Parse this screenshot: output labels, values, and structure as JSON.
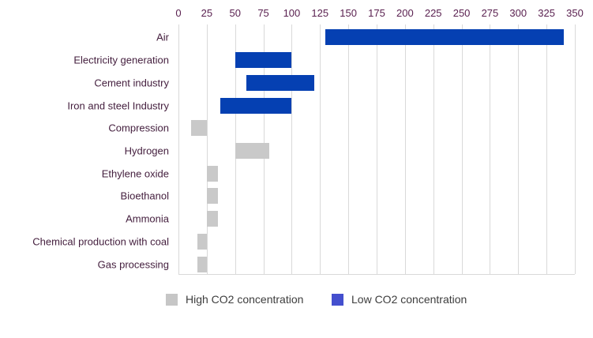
{
  "chart_data": {
    "type": "bar",
    "orientation": "horizontal",
    "title": "",
    "xlabel": "",
    "ylabel": "",
    "axis_position": "top",
    "xlim": [
      0,
      350
    ],
    "x_ticks": [
      0,
      25,
      50,
      75,
      100,
      125,
      150,
      175,
      200,
      225,
      250,
      275,
      300,
      325,
      350
    ],
    "grid": true,
    "value_unit": "",
    "bars": [
      {
        "label": "Air",
        "start": 130,
        "end": 340,
        "group": "low"
      },
      {
        "label": "Electricity generation",
        "start": 50,
        "end": 100,
        "group": "low"
      },
      {
        "label": "Cement industry",
        "start": 60,
        "end": 120,
        "group": "low"
      },
      {
        "label": "Iron and steel Industry",
        "start": 37,
        "end": 100,
        "group": "low"
      },
      {
        "label": "Compression",
        "start": 11,
        "end": 25,
        "group": "high"
      },
      {
        "label": "Hydrogen",
        "start": 50,
        "end": 80,
        "group": "high"
      },
      {
        "label": "Ethylene oxide",
        "start": 25,
        "end": 35,
        "group": "high"
      },
      {
        "label": "Bioethanol",
        "start": 25,
        "end": 35,
        "group": "high"
      },
      {
        "label": "Ammonia",
        "start": 25,
        "end": 35,
        "group": "high"
      },
      {
        "label": "Chemical production with coal",
        "start": 17,
        "end": 25,
        "group": "high"
      },
      {
        "label": "Gas processing",
        "start": 17,
        "end": 25,
        "group": "high"
      }
    ],
    "legend": {
      "position": "bottom",
      "items": [
        {
          "key": "high",
          "label": "High CO2 concentration"
        },
        {
          "key": "low",
          "label": "Low CO2 concentration"
        }
      ]
    }
  },
  "colors": {
    "bar_low": "#0540b2",
    "bar_high": "#c9c9c9",
    "legend_low": "#444fce",
    "legend_high": "#c6c6c6",
    "gridline": "#d9d9d9",
    "tick_text": "#5a2150",
    "category_text": "#45203f",
    "legend_text": "#3d3d3d"
  }
}
